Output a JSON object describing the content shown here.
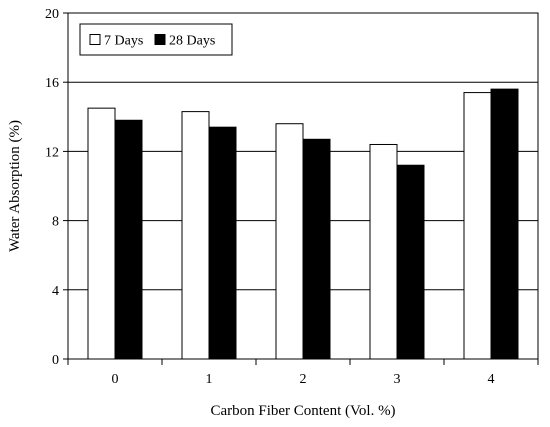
{
  "chart_data": {
    "type": "bar",
    "title": "",
    "xlabel": "Carbon Fiber Content (Vol. %)",
    "ylabel": "Water Absorption (%)",
    "categories": [
      "0",
      "1",
      "2",
      "3",
      "4"
    ],
    "series": [
      {
        "name": "7 Days",
        "values": [
          14.5,
          14.3,
          13.6,
          12.4,
          15.4
        ],
        "fill": "#ffffff"
      },
      {
        "name": "28 Days",
        "values": [
          13.8,
          13.4,
          12.7,
          11.2,
          15.6
        ],
        "fill": "#000000"
      }
    ],
    "ylim": [
      0,
      20
    ],
    "yticks": [
      "0",
      "4",
      "8",
      "12",
      "16",
      "20"
    ],
    "grid": "horizontal",
    "legend_position": "top-left"
  }
}
